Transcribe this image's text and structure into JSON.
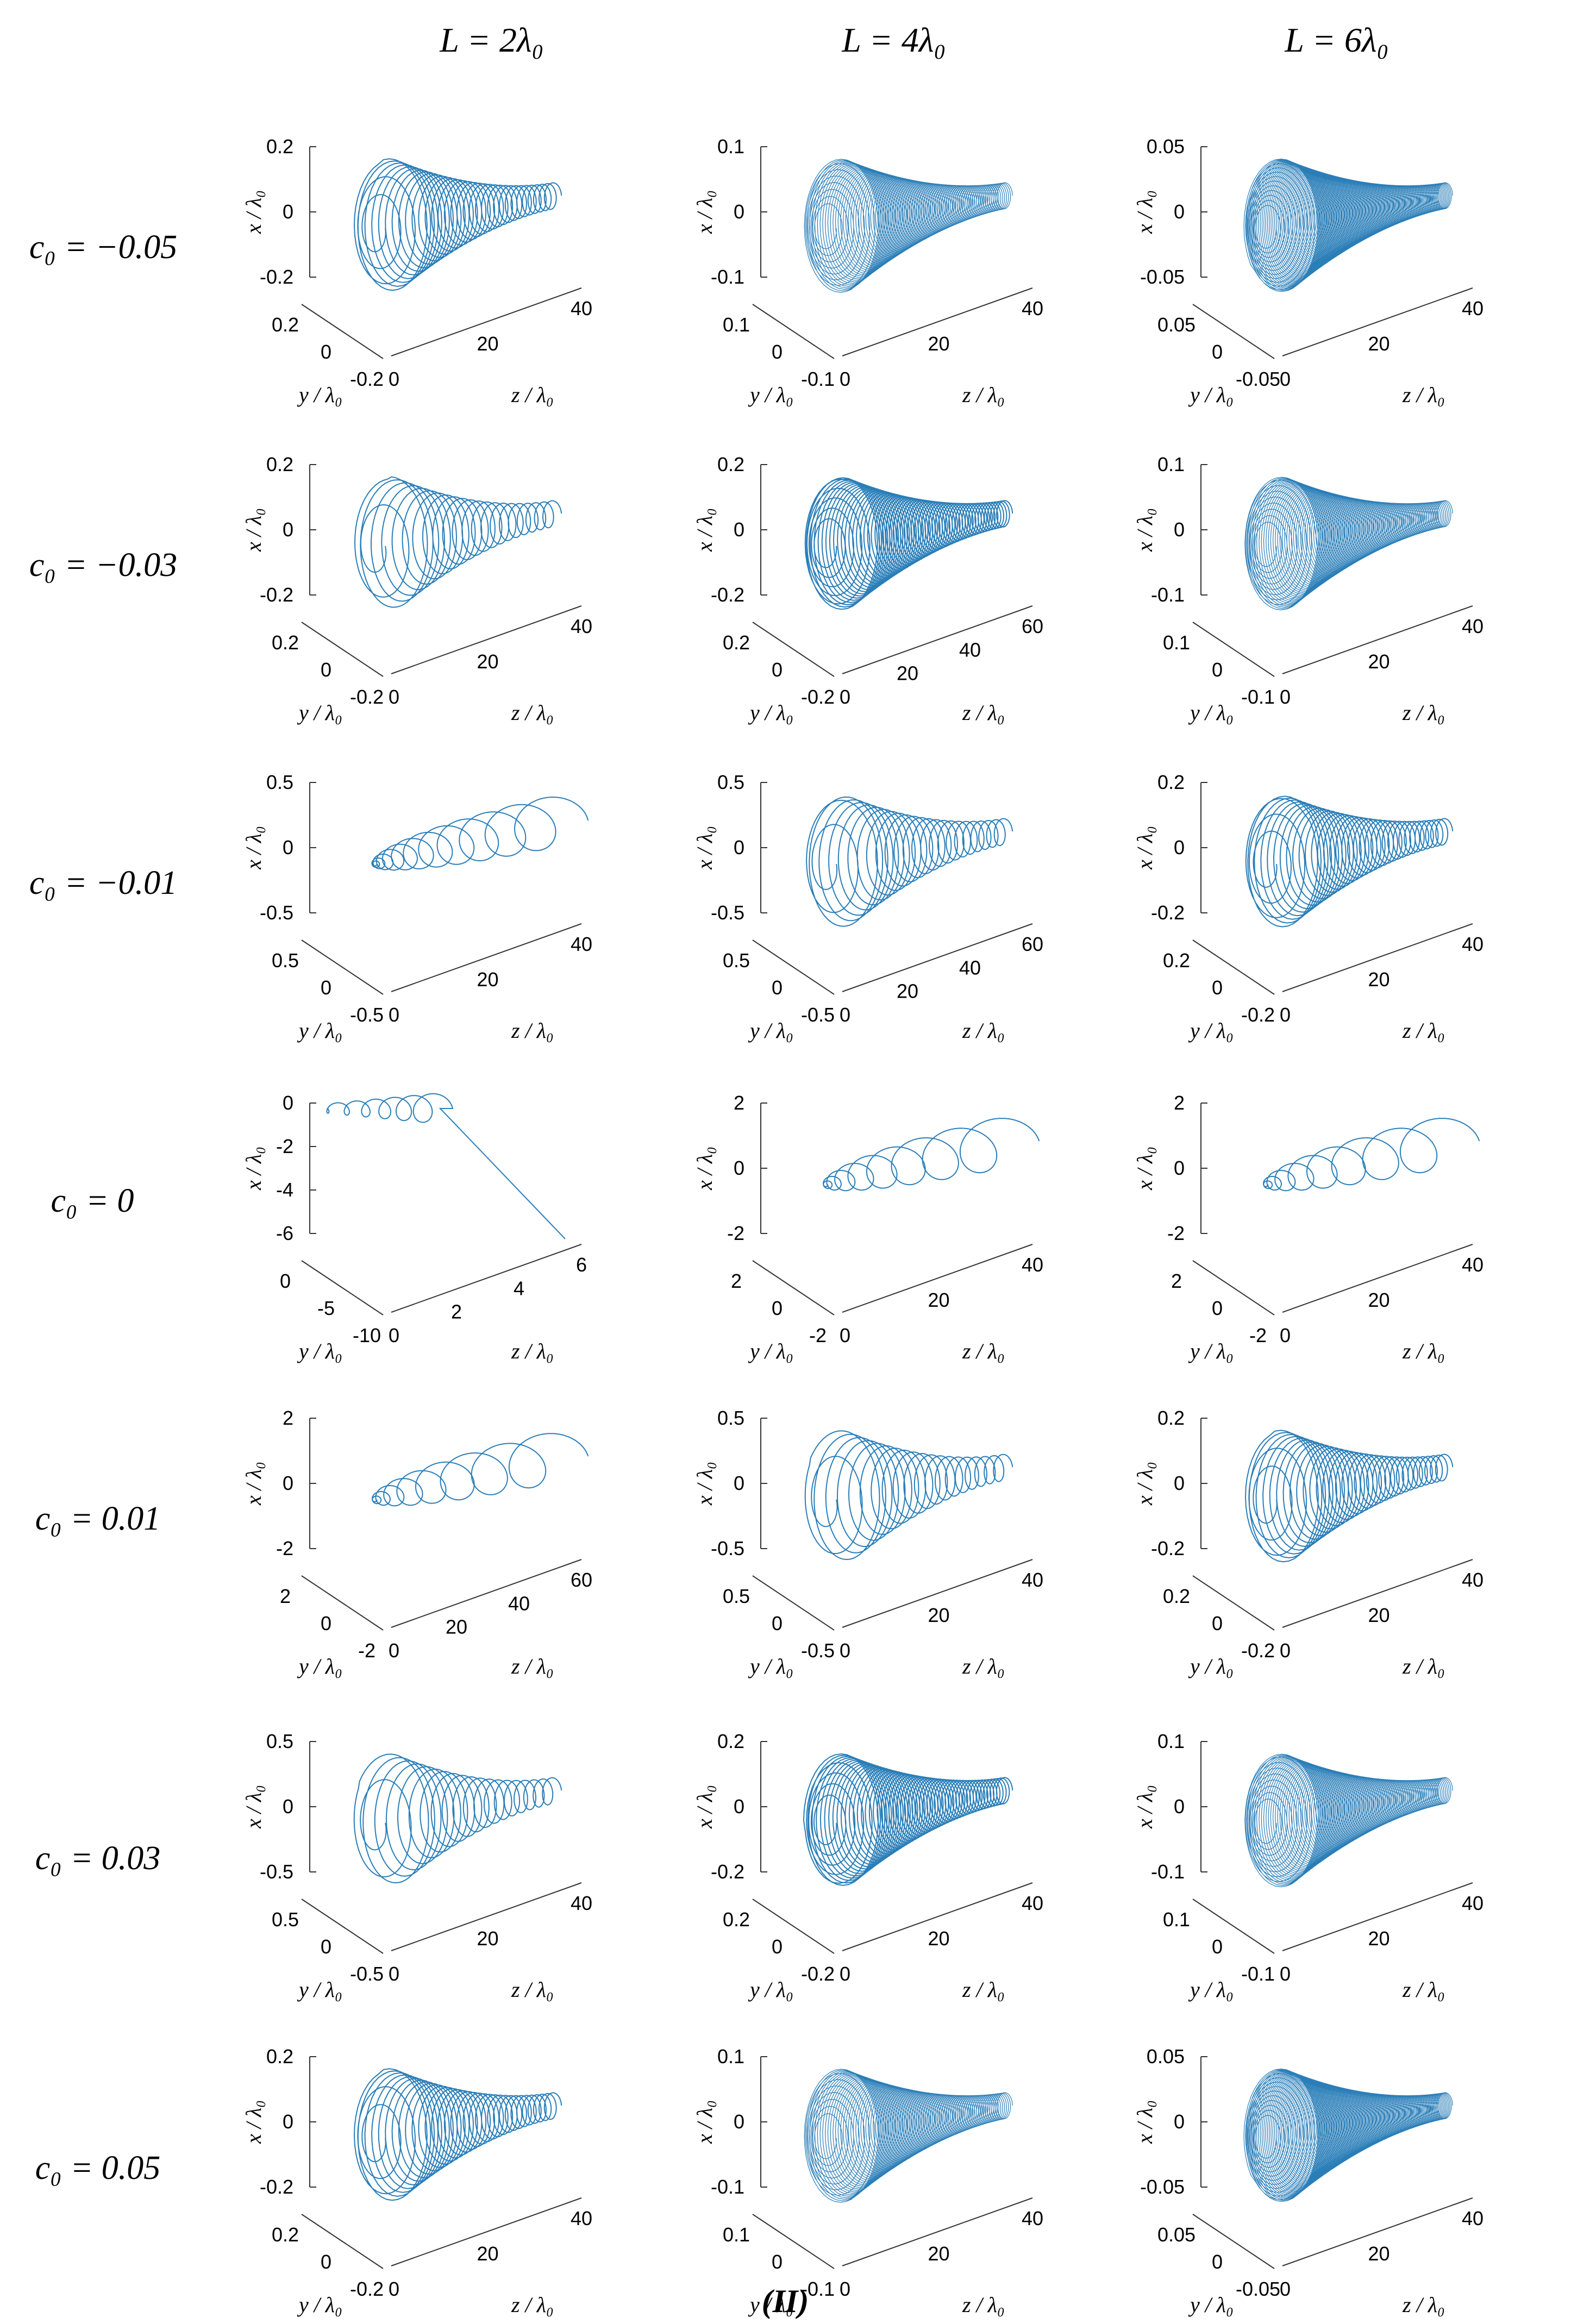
{
  "figure": {
    "column_headers": [
      "L = 2λ₀",
      "L = 4λ₀",
      "L = 6λ₀"
    ],
    "row_headers": [
      "c₀ = −0.05",
      "c₀ = −0.03",
      "c₀ = −0.01",
      "c₀ = 0",
      "c₀ = 0.01",
      "c₀ = 0.03",
      "c₀ = 0.05"
    ],
    "caption": "(II)"
  },
  "chart_data": [
    {
      "type": "line3d",
      "row": 0,
      "col": 0,
      "shape": "funnel",
      "turns": 34,
      "xticks": [
        "0.2",
        "0",
        "-0.2"
      ],
      "yticks": [
        "0.2",
        "0",
        "-0.2"
      ],
      "zticks": [
        "0",
        "20",
        "40"
      ],
      "xlabel": "x / λ₀",
      "ylabel": "y / λ₀",
      "zlabel": "z / λ₀",
      "color": "#1f77b4"
    },
    {
      "type": "line3d",
      "row": 0,
      "col": 1,
      "shape": "funnel",
      "turns": 90,
      "xticks": [
        "0.1",
        "0",
        "-0.1"
      ],
      "yticks": [
        "0.1",
        "0",
        "-0.1"
      ],
      "zticks": [
        "0",
        "20",
        "40"
      ],
      "xlabel": "x / λ₀",
      "ylabel": "y / λ₀",
      "zlabel": "z / λ₀",
      "color": "#1f77b4"
    },
    {
      "type": "line3d",
      "row": 0,
      "col": 2,
      "shape": "funnel",
      "turns": 130,
      "xticks": [
        "0.05",
        "0",
        "-0.05"
      ],
      "yticks": [
        "0.05",
        "0",
        "-0.05"
      ],
      "zticks": [
        "0",
        "20",
        "40"
      ],
      "xlabel": "x / λ₀",
      "ylabel": "y / λ₀",
      "zlabel": "z / λ₀",
      "color": "#1f77b4"
    },
    {
      "type": "line3d",
      "row": 1,
      "col": 0,
      "shape": "funnel",
      "turns": 22,
      "xticks": [
        "0.2",
        "0",
        "-0.2"
      ],
      "yticks": [
        "0.2",
        "0",
        "-0.2"
      ],
      "zticks": [
        "0",
        "20",
        "40"
      ],
      "xlabel": "x / λ₀",
      "ylabel": "y / λ₀",
      "zlabel": "z / λ₀",
      "color": "#1f77b4"
    },
    {
      "type": "line3d",
      "row": 1,
      "col": 1,
      "shape": "funnel",
      "turns": 60,
      "xticks": [
        "0.2",
        "0",
        "-0.2"
      ],
      "yticks": [
        "0.2",
        "0",
        "-0.2"
      ],
      "zticks": [
        "0",
        "20",
        "40",
        "60"
      ],
      "xlabel": "x / λ₀",
      "ylabel": "y / λ₀",
      "zlabel": "z / λ₀",
      "color": "#1f77b4"
    },
    {
      "type": "line3d",
      "row": 1,
      "col": 2,
      "shape": "funnel",
      "turns": 100,
      "xticks": [
        "0.1",
        "0",
        "-0.1"
      ],
      "yticks": [
        "0.1",
        "0",
        "-0.1"
      ],
      "zticks": [
        "0",
        "20",
        "40"
      ],
      "xlabel": "x / λ₀",
      "ylabel": "y / λ₀",
      "zlabel": "z / λ₀",
      "color": "#1f77b4"
    },
    {
      "type": "line3d",
      "row": 2,
      "col": 0,
      "shape": "spiral",
      "turns": 12,
      "xticks": [
        "0.5",
        "0",
        "-0.5"
      ],
      "yticks": [
        "0.5",
        "0",
        "-0.5"
      ],
      "zticks": [
        "0",
        "20",
        "40"
      ],
      "xlabel": "x / λ₀",
      "ylabel": "y / λ₀",
      "zlabel": "z / λ₀",
      "color": "#1f77b4"
    },
    {
      "type": "line3d",
      "row": 2,
      "col": 1,
      "shape": "funnel",
      "turns": 24,
      "xticks": [
        "0.5",
        "0",
        "-0.5"
      ],
      "yticks": [
        "0.5",
        "0",
        "-0.5"
      ],
      "zticks": [
        "0",
        "20",
        "40",
        "60"
      ],
      "xlabel": "x / λ₀",
      "ylabel": "y / λ₀",
      "zlabel": "z / λ₀",
      "color": "#1f77b4"
    },
    {
      "type": "line3d",
      "row": 2,
      "col": 2,
      "shape": "funnel",
      "turns": 36,
      "xticks": [
        "0.2",
        "0",
        "-0.2"
      ],
      "yticks": [
        "0.2",
        "0",
        "-0.2"
      ],
      "zticks": [
        "0",
        "20",
        "40"
      ],
      "xlabel": "x / λ₀",
      "ylabel": "y / λ₀",
      "zlabel": "z / λ₀",
      "color": "#1f77b4"
    },
    {
      "type": "line3d",
      "row": 3,
      "col": 0,
      "shape": "drift",
      "turns": 6,
      "xticks": [
        "0",
        "-2",
        "-4",
        "-6"
      ],
      "yticks": [
        "0",
        "-5",
        "-10"
      ],
      "zticks": [
        "0",
        "2",
        "4",
        "6"
      ],
      "xlabel": "x / λ₀",
      "ylabel": "y / λ₀",
      "zlabel": "z / λ₀",
      "color": "#1f77b4"
    },
    {
      "type": "line3d",
      "row": 3,
      "col": 1,
      "shape": "spiral",
      "turns": 9,
      "xticks": [
        "2",
        "0",
        "-2"
      ],
      "yticks": [
        "2",
        "0",
        "-2"
      ],
      "zticks": [
        "0",
        "20",
        "40"
      ],
      "xlabel": "x / λ₀",
      "ylabel": "y / λ₀",
      "zlabel": "z / λ₀",
      "color": "#1f77b4"
    },
    {
      "type": "line3d",
      "row": 3,
      "col": 2,
      "shape": "spiral",
      "turns": 9,
      "xticks": [
        "2",
        "0",
        "-2"
      ],
      "yticks": [
        "2",
        "0",
        "-2"
      ],
      "zticks": [
        "0",
        "20",
        "40"
      ],
      "xlabel": "x / λ₀",
      "ylabel": "y / λ₀",
      "zlabel": "z / λ₀",
      "color": "#1f77b4"
    },
    {
      "type": "line3d",
      "row": 4,
      "col": 0,
      "shape": "spiral",
      "turns": 9,
      "xticks": [
        "2",
        "0",
        "-2"
      ],
      "yticks": [
        "2",
        "0",
        "-2"
      ],
      "zticks": [
        "0",
        "20",
        "40",
        "60"
      ],
      "xlabel": "x / λ₀",
      "ylabel": "y / λ₀",
      "zlabel": "z / λ₀",
      "color": "#1f77b4"
    },
    {
      "type": "line3d",
      "row": 4,
      "col": 1,
      "shape": "funnel",
      "turns": 20,
      "xticks": [
        "0.5",
        "0",
        "-0.5"
      ],
      "yticks": [
        "0.5",
        "0",
        "-0.5"
      ],
      "zticks": [
        "0",
        "20",
        "40"
      ],
      "xlabel": "x / λ₀",
      "ylabel": "y / λ₀",
      "zlabel": "z / λ₀",
      "color": "#1f77b4"
    },
    {
      "type": "line3d",
      "row": 4,
      "col": 2,
      "shape": "funnel",
      "turns": 34,
      "xticks": [
        "0.2",
        "0",
        "-0.2"
      ],
      "yticks": [
        "0.2",
        "0",
        "-0.2"
      ],
      "zticks": [
        "0",
        "20",
        "40"
      ],
      "xlabel": "x / λ₀",
      "ylabel": "y / λ₀",
      "zlabel": "z / λ₀",
      "color": "#1f77b4"
    },
    {
      "type": "line3d",
      "row": 5,
      "col": 0,
      "shape": "funnel",
      "turns": 20,
      "xticks": [
        "0.5",
        "0",
        "-0.5"
      ],
      "yticks": [
        "0.5",
        "0",
        "-0.5"
      ],
      "zticks": [
        "0",
        "20",
        "40"
      ],
      "xlabel": "x / λ₀",
      "ylabel": "y / λ₀",
      "zlabel": "z / λ₀",
      "color": "#1f77b4"
    },
    {
      "type": "line3d",
      "row": 5,
      "col": 1,
      "shape": "funnel",
      "turns": 56,
      "xticks": [
        "0.2",
        "0",
        "-0.2"
      ],
      "yticks": [
        "0.2",
        "0",
        "-0.2"
      ],
      "zticks": [
        "0",
        "20",
        "40"
      ],
      "xlabel": "x / λ₀",
      "ylabel": "y / λ₀",
      "zlabel": "z / λ₀",
      "color": "#1f77b4"
    },
    {
      "type": "line3d",
      "row": 5,
      "col": 2,
      "shape": "funnel",
      "turns": 100,
      "xticks": [
        "0.1",
        "0",
        "-0.1"
      ],
      "yticks": [
        "0.1",
        "0",
        "-0.1"
      ],
      "zticks": [
        "0",
        "20",
        "40"
      ],
      "xlabel": "x / λ₀",
      "ylabel": "y / λ₀",
      "zlabel": "z / λ₀",
      "color": "#1f77b4"
    },
    {
      "type": "line3d",
      "row": 6,
      "col": 0,
      "shape": "funnel",
      "turns": 34,
      "xticks": [
        "0.2",
        "0",
        "-0.2"
      ],
      "yticks": [
        "0.2",
        "0",
        "-0.2"
      ],
      "zticks": [
        "0",
        "20",
        "40"
      ],
      "xlabel": "x / λ₀",
      "ylabel": "y / λ₀",
      "zlabel": "z / λ₀",
      "color": "#1f77b4"
    },
    {
      "type": "line3d",
      "row": 6,
      "col": 1,
      "shape": "funnel",
      "turns": 90,
      "xticks": [
        "0.1",
        "0",
        "-0.1"
      ],
      "yticks": [
        "0.1",
        "0",
        "-0.1"
      ],
      "zticks": [
        "0",
        "20",
        "40"
      ],
      "xlabel": "x / λ₀",
      "ylabel": "y / λ₀",
      "zlabel": "z / λ₀",
      "color": "#1f77b4"
    },
    {
      "type": "line3d",
      "row": 6,
      "col": 2,
      "shape": "funnel",
      "turns": 130,
      "xticks": [
        "0.05",
        "0",
        "-0.05"
      ],
      "yticks": [
        "0.05",
        "0",
        "-0.05"
      ],
      "zticks": [
        "0",
        "20",
        "40"
      ],
      "xlabel": "x / λ₀",
      "ylabel": "y / λ₀",
      "zlabel": "z / λ₀",
      "color": "#1f77b4"
    }
  ]
}
